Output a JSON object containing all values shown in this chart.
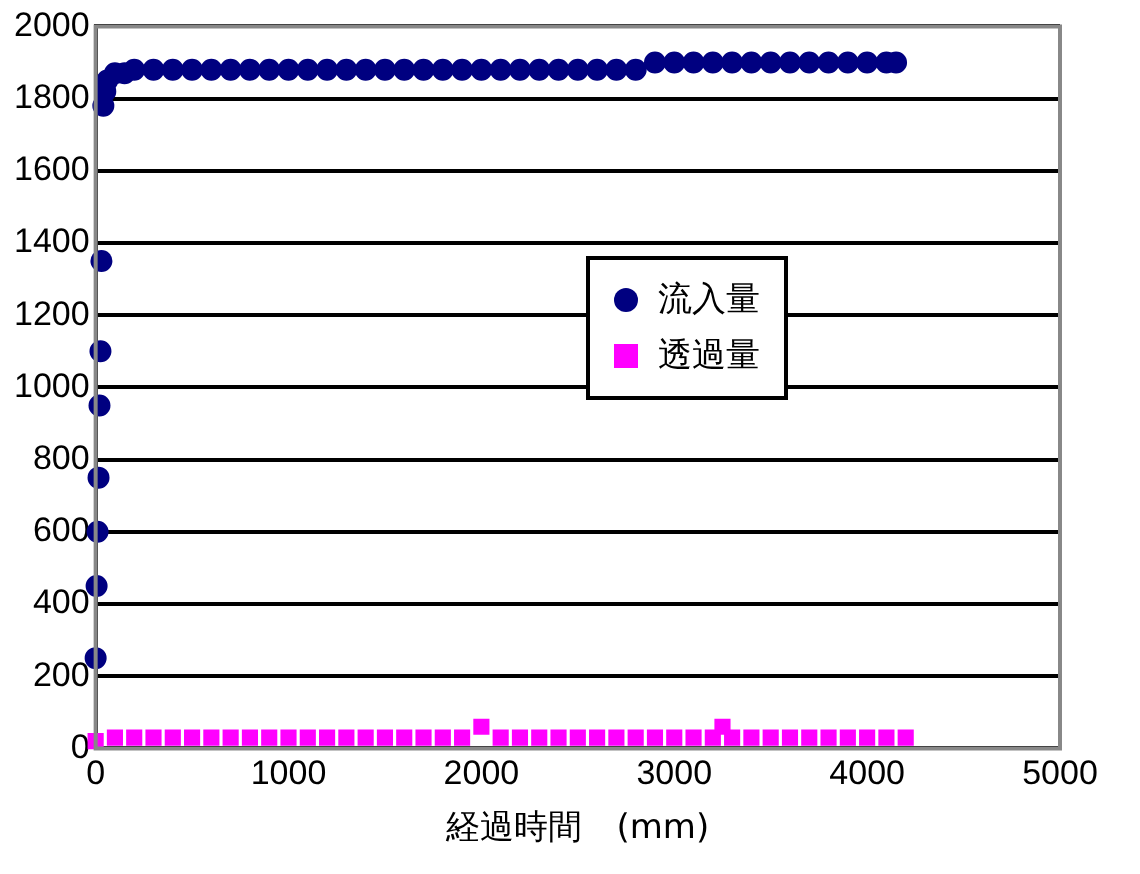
{
  "chart_data": {
    "type": "scatter",
    "xlabel": "経過時間　(mm)",
    "xlim": [
      0,
      5000
    ],
    "xticks": [
      0,
      1000,
      2000,
      3000,
      4000,
      5000
    ],
    "ylim": [
      0,
      2000
    ],
    "yticks": [
      0,
      200,
      400,
      600,
      800,
      1000,
      1200,
      1400,
      1600,
      1800,
      2000
    ],
    "grid": "y",
    "legend": "right",
    "series": [
      {
        "name": "流入量",
        "color": "#000080",
        "marker": "circle",
        "x": [
          0,
          5,
          10,
          15,
          20,
          25,
          30,
          40,
          50,
          60,
          100,
          150,
          200,
          300,
          400,
          500,
          600,
          700,
          800,
          900,
          1000,
          1100,
          1200,
          1300,
          1400,
          1500,
          1600,
          1700,
          1800,
          1900,
          2000,
          2100,
          2200,
          2300,
          2400,
          2500,
          2600,
          2700,
          2800,
          2900,
          3000,
          3100,
          3200,
          3300,
          3400,
          3500,
          3600,
          3700,
          3800,
          3900,
          4000,
          4100,
          4150
        ],
        "values": [
          250,
          450,
          600,
          750,
          950,
          1100,
          1350,
          1780,
          1820,
          1850,
          1870,
          1870,
          1880,
          1880,
          1880,
          1880,
          1880,
          1880,
          1880,
          1880,
          1880,
          1880,
          1880,
          1880,
          1880,
          1880,
          1880,
          1880,
          1880,
          1880,
          1880,
          1880,
          1880,
          1880,
          1880,
          1880,
          1880,
          1880,
          1880,
          1900,
          1900,
          1900,
          1900,
          1900,
          1900,
          1900,
          1900,
          1900,
          1900,
          1900,
          1900,
          1900,
          1900
        ]
      },
      {
        "name": "透過量",
        "color": "#ff00ff",
        "marker": "square",
        "x": [
          0,
          100,
          200,
          300,
          400,
          500,
          600,
          700,
          800,
          900,
          1000,
          1100,
          1200,
          1300,
          1400,
          1500,
          1600,
          1700,
          1800,
          1900,
          2000,
          2100,
          2200,
          2300,
          2400,
          2500,
          2600,
          2700,
          2800,
          2900,
          3000,
          3100,
          3200,
          3250,
          3300,
          3400,
          3500,
          3600,
          3700,
          3800,
          3900,
          4000,
          4100,
          4200
        ],
        "values": [
          20,
          30,
          30,
          30,
          30,
          30,
          30,
          30,
          30,
          30,
          30,
          30,
          30,
          30,
          30,
          30,
          30,
          30,
          30,
          30,
          60,
          30,
          30,
          30,
          30,
          30,
          30,
          30,
          30,
          30,
          30,
          30,
          30,
          60,
          30,
          30,
          30,
          30,
          30,
          30,
          30,
          30,
          30,
          30
        ]
      }
    ]
  }
}
